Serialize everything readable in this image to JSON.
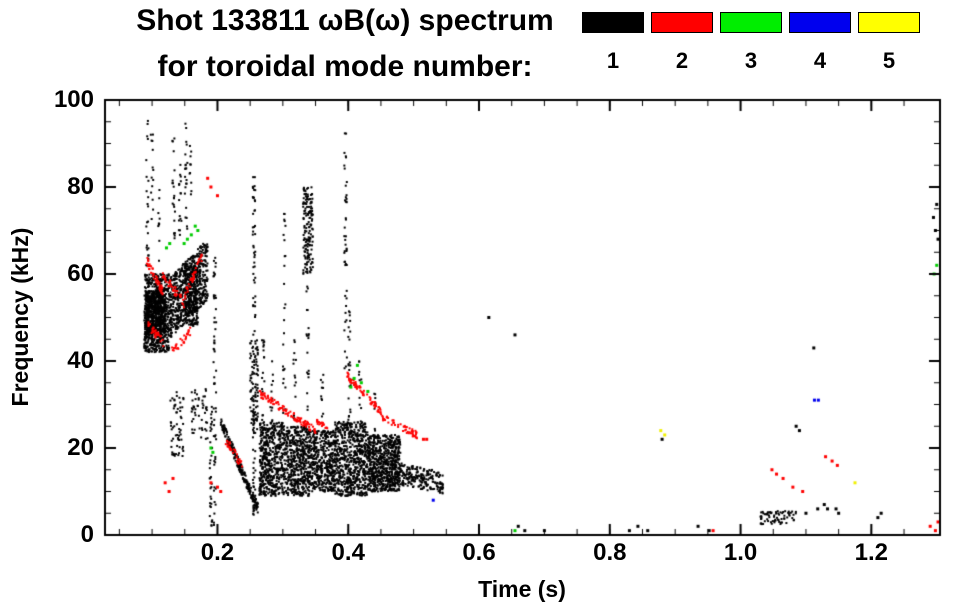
{
  "header": {
    "title_line1": "Shot 133811 ωB(ω) spectrum",
    "title_line2": "for toroidal mode number:",
    "legend": [
      {
        "mode": "1",
        "color": "#000000"
      },
      {
        "mode": "2",
        "color": "#ff0000"
      },
      {
        "mode": "3",
        "color": "#00ee00"
      },
      {
        "mode": "4",
        "color": "#0000ee"
      },
      {
        "mode": "5",
        "color": "#ffff00"
      }
    ]
  },
  "chart_data": {
    "type": "scatter",
    "title": "Shot 133811 ωB(ω) spectrum for toroidal mode number 1-5",
    "xlabel": "Time (s)",
    "ylabel": "Frequency (kHz)",
    "xlim": [
      0.028,
      1.305
    ],
    "ylim": [
      0,
      100
    ],
    "grid": false,
    "legend_position": "top",
    "x_major_ticks": [
      0.2,
      0.4,
      0.6,
      0.8,
      1.0,
      1.2
    ],
    "x_tick_labels": [
      "0.2",
      "0.4",
      "0.6",
      "0.8",
      "1.0",
      "1.2"
    ],
    "x_minor_step": 0.05,
    "y_major_ticks": [
      0,
      20,
      40,
      60,
      80,
      100
    ],
    "y_tick_labels": [
      "0",
      "20",
      "40",
      "60",
      "80",
      "100"
    ],
    "y_minor_step": 5,
    "series": [
      {
        "name": "n=1",
        "color": "#000000",
        "clusters": [
          {
            "kind": "blob",
            "t": [
              0.088,
              0.126
            ],
            "f": [
              42,
              60
            ],
            "n": 700
          },
          {
            "kind": "blob",
            "t": [
              0.09,
              0.12
            ],
            "f": [
              46,
              56
            ],
            "n": 500
          },
          {
            "kind": "vline",
            "t": 0.093,
            "f": [
              60,
              97
            ],
            "n": 25
          },
          {
            "kind": "vline",
            "t": 0.1,
            "f": [
              72,
              95
            ],
            "n": 14
          },
          {
            "kind": "vline",
            "t": 0.11,
            "f": [
              60,
              80
            ],
            "n": 10
          },
          {
            "kind": "line",
            "from": [
              0.126,
              52
            ],
            "to": [
              0.185,
              61
            ],
            "spread": 7,
            "n": 650
          },
          {
            "kind": "blob",
            "t": [
              0.15,
              0.17
            ],
            "f": [
              48,
              62
            ],
            "n": 250
          },
          {
            "kind": "vline",
            "t": 0.133,
            "f": [
              68,
              92
            ],
            "n": 22
          },
          {
            "kind": "vline",
            "t": 0.143,
            "f": [
              64,
              86
            ],
            "n": 16
          },
          {
            "kind": "vline",
            "t": 0.152,
            "f": [
              70,
              95
            ],
            "n": 22
          },
          {
            "kind": "vline",
            "t": 0.159,
            "f": [
              76,
              90
            ],
            "n": 10
          },
          {
            "kind": "blob",
            "t": [
              0.128,
              0.148
            ],
            "f": [
              18,
              33
            ],
            "n": 60
          },
          {
            "kind": "blob",
            "t": [
              0.16,
              0.185
            ],
            "f": [
              22,
              34
            ],
            "n": 50
          },
          {
            "kind": "vline",
            "t": 0.19,
            "f": [
              2,
              30
            ],
            "n": 35
          },
          {
            "kind": "vline",
            "t": 0.196,
            "f": [
              0,
              64
            ],
            "n": 55
          },
          {
            "kind": "line",
            "from": [
              0.205,
              26
            ],
            "to": [
              0.262,
              6
            ],
            "spread": 1.2,
            "n": 220
          },
          {
            "kind": "vline",
            "t": 0.256,
            "f": [
              4,
              83
            ],
            "n": 90
          },
          {
            "kind": "blob",
            "t": [
              0.25,
              0.262
            ],
            "f": [
              24,
              46
            ],
            "n": 90
          },
          {
            "kind": "blob",
            "t": [
              0.264,
              0.3
            ],
            "f": [
              9,
              26
            ],
            "n": 500
          },
          {
            "kind": "blob",
            "t": [
              0.3,
              0.34
            ],
            "f": [
              9,
              25
            ],
            "n": 500
          },
          {
            "kind": "blob",
            "t": [
              0.34,
              0.38
            ],
            "f": [
              10,
              24
            ],
            "n": 450
          },
          {
            "kind": "blob",
            "t": [
              0.38,
              0.43
            ],
            "f": [
              9,
              26
            ],
            "n": 650
          },
          {
            "kind": "blob",
            "t": [
              0.43,
              0.48
            ],
            "f": [
              10,
              23
            ],
            "n": 700
          },
          {
            "kind": "line",
            "from": [
              0.48,
              14
            ],
            "to": [
              0.545,
              12
            ],
            "spread": 2.5,
            "n": 200
          },
          {
            "kind": "vline",
            "t": 0.27,
            "f": [
              25,
              45
            ],
            "n": 18
          },
          {
            "kind": "vline",
            "t": 0.283,
            "f": [
              25,
              40
            ],
            "n": 12
          },
          {
            "kind": "vline",
            "t": 0.302,
            "f": [
              28,
              76
            ],
            "n": 26
          },
          {
            "kind": "vline",
            "t": 0.318,
            "f": [
              25,
              45
            ],
            "n": 14
          },
          {
            "kind": "blob",
            "t": [
              0.331,
              0.346
            ],
            "f": [
              60,
              80
            ],
            "n": 160
          },
          {
            "kind": "vline",
            "t": 0.338,
            "f": [
              28,
              58
            ],
            "n": 20
          },
          {
            "kind": "vline",
            "t": 0.36,
            "f": [
              25,
              40
            ],
            "n": 10
          },
          {
            "kind": "vline",
            "t": 0.396,
            "f": [
              38,
              93
            ],
            "n": 45
          },
          {
            "kind": "vline",
            "t": 0.402,
            "f": [
              26,
              55
            ],
            "n": 22
          },
          {
            "kind": "vline",
            "t": 0.418,
            "f": [
              25,
              40
            ],
            "n": 10
          },
          {
            "kind": "vline",
            "t": 0.44,
            "f": [
              24,
              34
            ],
            "n": 8
          },
          {
            "kind": "dots",
            "points": [
              [
                0.615,
                50
              ],
              [
                0.655,
                46
              ],
              [
                0.66,
                2
              ],
              [
                0.67,
                1
              ],
              [
                0.7,
                1
              ],
              [
                0.83,
                1
              ],
              [
                0.843,
                2
              ],
              [
                0.858,
                1
              ],
              [
                0.88,
                22
              ],
              [
                0.935,
                2
              ],
              [
                0.952,
                1
              ]
            ]
          },
          {
            "kind": "line",
            "from": [
              1.03,
              4
            ],
            "to": [
              1.085,
              4
            ],
            "spread": 1.5,
            "n": 70
          },
          {
            "kind": "dots",
            "points": [
              [
                1.085,
                25
              ],
              [
                1.09,
                24
              ],
              [
                1.1,
                5
              ],
              [
                1.112,
                43
              ],
              [
                1.118,
                6
              ],
              [
                1.128,
                7
              ],
              [
                1.133,
                6
              ],
              [
                1.146,
                6
              ],
              [
                1.15,
                5
              ],
              [
                1.21,
                4
              ],
              [
                1.215,
                5
              ],
              [
                1.295,
                73
              ],
              [
                1.298,
                70
              ],
              [
                1.3,
                76
              ],
              [
                1.302,
                68
              ]
            ]
          }
        ]
      },
      {
        "name": "n=2",
        "color": "#ff0000",
        "clusters": [
          {
            "kind": "line",
            "from": [
              0.092,
              63
            ],
            "to": [
              0.116,
              56
            ],
            "spread": 1,
            "n": 45
          },
          {
            "kind": "line",
            "from": [
              0.094,
              48
            ],
            "to": [
              0.12,
              44
            ],
            "spread": 1,
            "n": 35
          },
          {
            "kind": "line",
            "from": [
              0.116,
              60
            ],
            "to": [
              0.15,
              53
            ],
            "spread": 1,
            "n": 40
          },
          {
            "kind": "line",
            "from": [
              0.15,
              55
            ],
            "to": [
              0.176,
              64
            ],
            "spread": 1,
            "n": 40
          },
          {
            "kind": "line",
            "from": [
              0.13,
              42
            ],
            "to": [
              0.16,
              47
            ],
            "spread": 1,
            "n": 30
          },
          {
            "kind": "dots",
            "points": [
              [
                0.185,
                82
              ],
              [
                0.19,
                80
              ],
              [
                0.2,
                78
              ],
              [
                0.12,
                12
              ],
              [
                0.126,
                10
              ],
              [
                0.132,
                13
              ],
              [
                0.19,
                12
              ],
              [
                0.2,
                11
              ],
              [
                0.205,
                10
              ]
            ]
          },
          {
            "kind": "line",
            "from": [
              0.212,
              22
            ],
            "to": [
              0.238,
              16
            ],
            "spread": 1,
            "n": 30
          },
          {
            "kind": "line",
            "from": [
              0.26,
              33
            ],
            "to": [
              0.35,
              24
            ],
            "spread": 0.8,
            "n": 110
          },
          {
            "kind": "line",
            "from": [
              0.352,
              26
            ],
            "to": [
              0.368,
              25
            ],
            "spread": 0.6,
            "n": 20
          },
          {
            "kind": "line",
            "from": [
              0.396,
              37
            ],
            "to": [
              0.452,
              28
            ],
            "spread": 0.8,
            "n": 70
          },
          {
            "kind": "line",
            "from": [
              0.452,
              27
            ],
            "to": [
              0.505,
              23
            ],
            "spread": 0.8,
            "n": 55
          },
          {
            "kind": "dots",
            "points": [
              [
                0.515,
                22
              ],
              [
                0.52,
                22
              ]
            ]
          },
          {
            "kind": "dots",
            "points": [
              [
                1.048,
                15
              ],
              [
                1.055,
                14
              ],
              [
                1.065,
                13
              ],
              [
                1.08,
                11
              ],
              [
                1.095,
                10
              ],
              [
                1.13,
                18
              ],
              [
                1.14,
                17
              ],
              [
                1.148,
                16
              ],
              [
                0.958,
                1
              ],
              [
                1.29,
                2
              ],
              [
                1.298,
                1
              ],
              [
                1.302,
                3
              ]
            ]
          }
        ]
      },
      {
        "name": "n=3",
        "color": "#00cc00",
        "clusters": [
          {
            "kind": "dots",
            "points": [
              [
                0.122,
                66
              ],
              [
                0.127,
                67
              ],
              [
                0.149,
                67
              ],
              [
                0.154,
                68
              ],
              [
                0.16,
                69
              ],
              [
                0.166,
                71
              ],
              [
                0.17,
                70
              ]
            ]
          },
          {
            "kind": "dots",
            "points": [
              [
                0.19,
                20
              ],
              [
                0.193,
                19
              ]
            ]
          },
          {
            "kind": "dots",
            "points": [
              [
                0.404,
                34
              ],
              [
                0.409,
                36
              ],
              [
                0.414,
                39
              ],
              [
                0.42,
                35
              ],
              [
                0.43,
                33
              ]
            ]
          },
          {
            "kind": "dots",
            "points": [
              [
                0.655,
                1
              ],
              [
                1.296,
                60
              ],
              [
                1.3,
                62
              ]
            ]
          }
        ]
      },
      {
        "name": "n=4",
        "color": "#0000ee",
        "clusters": [
          {
            "kind": "dots",
            "points": [
              [
                1.113,
                31
              ],
              [
                1.119,
                31
              ],
              [
                0.53,
                8
              ]
            ]
          }
        ]
      },
      {
        "name": "n=5",
        "color": "#f0f000",
        "clusters": [
          {
            "kind": "dots",
            "points": [
              [
                0.878,
                24
              ],
              [
                0.884,
                23
              ],
              [
                1.175,
                12
              ]
            ]
          }
        ]
      }
    ]
  }
}
